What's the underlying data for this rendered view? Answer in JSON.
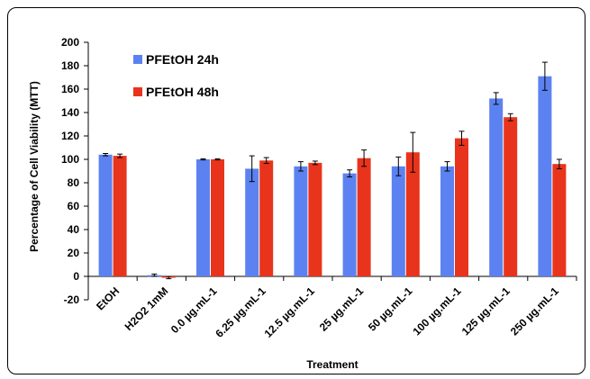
{
  "chart_data": {
    "type": "bar",
    "xlabel": "Treatment",
    "ylabel": "Percentage of Cell Viability (MTT)",
    "ylim": [
      -20,
      200
    ],
    "yticks": [
      -20,
      0,
      20,
      40,
      60,
      80,
      100,
      120,
      140,
      160,
      180,
      200
    ],
    "grid": false,
    "legend_position": "top-left",
    "categories": [
      "EtOH",
      "H2O2 1mM",
      "0.0 µg.mL-1",
      "6.25 µg.mL-1",
      "12.5 µg.mL-1",
      "25 µg.mL-1",
      "50 µg.mL-1",
      "100 µg.mL-1",
      "125 µg.mL-1",
      "250 µg.mL-1"
    ],
    "series": [
      {
        "name": "PFEtOH 24h",
        "color": "#5b82f0",
        "values": [
          104,
          1,
          100,
          92,
          94,
          88,
          94,
          94,
          152,
          171
        ],
        "errors": [
          1,
          1,
          0.5,
          11,
          4,
          3,
          8,
          4,
          5,
          12
        ]
      },
      {
        "name": "PFEtOH 48h",
        "color": "#e8341c",
        "values": [
          103,
          -1,
          100,
          99,
          97,
          101,
          106,
          118,
          136,
          96
        ],
        "errors": [
          1.5,
          1,
          0.5,
          2.5,
          1.5,
          7,
          17,
          6,
          3,
          4
        ]
      }
    ]
  }
}
